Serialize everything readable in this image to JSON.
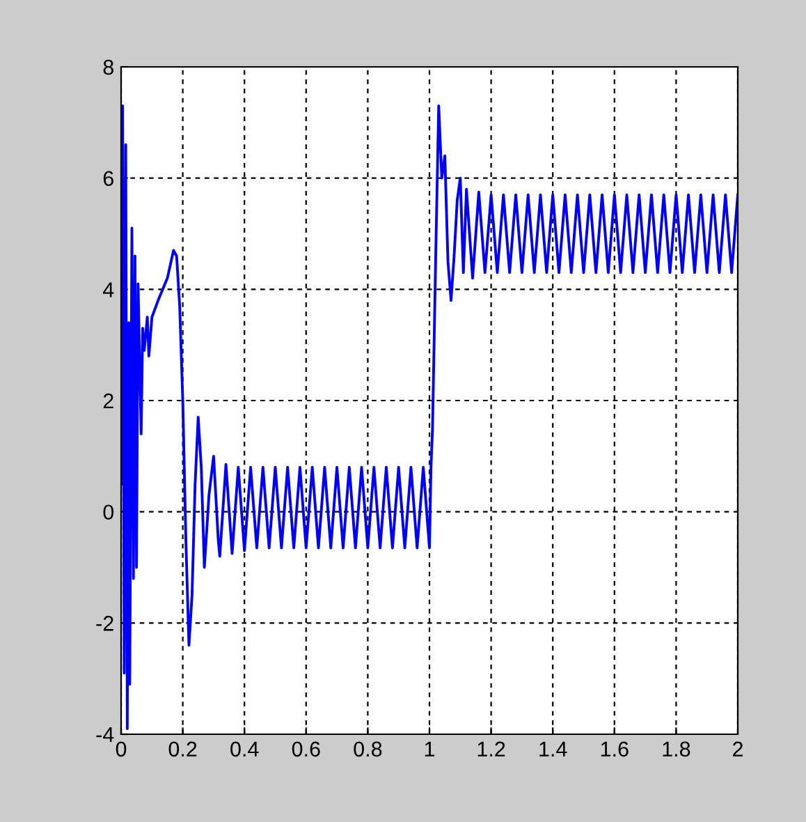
{
  "chart_data": {
    "type": "line",
    "xlim": [
      0,
      2
    ],
    "ylim": [
      -4,
      8
    ],
    "xticks": [
      0,
      0.2,
      0.4,
      0.6,
      0.8,
      1,
      1.2,
      1.4,
      1.6,
      1.8,
      2
    ],
    "yticks": [
      -4,
      -2,
      0,
      2,
      4,
      6,
      8
    ],
    "grid": true,
    "line_style": "solid",
    "marker": "none",
    "series": [
      {
        "color": "#0000ff",
        "x": [
          0,
          0.005,
          0.01,
          0.015,
          0.02,
          0.025,
          0.028,
          0.035,
          0.04,
          0.045,
          0.05,
          0.055,
          0.065,
          0.07,
          0.075,
          0.085,
          0.09,
          0.1,
          0.12,
          0.15,
          0.17,
          0.18,
          0.19,
          0.2,
          0.21,
          0.22,
          0.23,
          0.24,
          0.25,
          0.26,
          0.27,
          0.285,
          0.3,
          0.315,
          0.32,
          0.34,
          0.36,
          0.38,
          0.4,
          0.42,
          0.44,
          0.46,
          0.48,
          0.5,
          0.52,
          0.54,
          0.56,
          0.58,
          0.6,
          0.62,
          0.64,
          0.66,
          0.68,
          0.7,
          0.72,
          0.74,
          0.76,
          0.78,
          0.8,
          0.82,
          0.84,
          0.86,
          0.88,
          0.9,
          0.92,
          0.94,
          0.96,
          0.98,
          1.0,
          1.005,
          1.01,
          1.015,
          1.02,
          1.03,
          1.04,
          1.05,
          1.06,
          1.07,
          1.08,
          1.09,
          1.1,
          1.11,
          1.12,
          1.14,
          1.16,
          1.18,
          1.2,
          1.22,
          1.24,
          1.26,
          1.28,
          1.3,
          1.32,
          1.34,
          1.36,
          1.38,
          1.4,
          1.42,
          1.44,
          1.46,
          1.48,
          1.5,
          1.52,
          1.54,
          1.56,
          1.58,
          1.6,
          1.62,
          1.64,
          1.66,
          1.68,
          1.7,
          1.72,
          1.74,
          1.76,
          1.78,
          1.8,
          1.82,
          1.84,
          1.86,
          1.88,
          1.9,
          1.92,
          1.94,
          1.96,
          1.98,
          2.0
        ],
        "values": [
          0.5,
          7.3,
          -2.9,
          6.6,
          -3.9,
          3.4,
          -3.1,
          5.1,
          -1.2,
          4.6,
          -1.0,
          4.1,
          1.4,
          3.3,
          2.9,
          3.5,
          2.8,
          3.5,
          3.8,
          4.2,
          4.7,
          4.6,
          3.7,
          2.0,
          -0.5,
          -2.4,
          -1.5,
          0.5,
          1.7,
          0.8,
          -1.0,
          0.3,
          1.0,
          -0.5,
          -0.8,
          0.85,
          -0.75,
          0.8,
          -0.7,
          0.8,
          -0.65,
          0.8,
          -0.65,
          0.8,
          -0.65,
          0.8,
          -0.65,
          0.8,
          -0.65,
          0.8,
          -0.65,
          0.8,
          -0.65,
          0.8,
          -0.65,
          0.8,
          -0.65,
          0.8,
          -0.65,
          0.8,
          -0.65,
          0.8,
          -0.65,
          0.8,
          -0.65,
          0.8,
          -0.65,
          0.8,
          -0.65,
          0.8,
          1.5,
          3.0,
          4.5,
          7.3,
          6.0,
          6.4,
          4.5,
          3.8,
          4.6,
          5.6,
          6.0,
          4.3,
          5.8,
          4.2,
          5.75,
          4.3,
          5.7,
          4.3,
          5.7,
          4.3,
          5.7,
          4.3,
          5.7,
          4.3,
          5.7,
          4.3,
          5.7,
          4.3,
          5.7,
          4.3,
          5.7,
          4.3,
          5.7,
          4.3,
          5.7,
          4.3,
          5.7,
          4.3,
          5.7,
          4.3,
          5.7,
          4.3,
          5.7,
          4.3,
          5.7,
          4.3,
          5.7,
          4.3,
          5.7,
          4.3,
          5.7,
          4.3,
          5.7,
          4.3,
          5.7,
          4.3,
          5.7
        ]
      }
    ]
  }
}
